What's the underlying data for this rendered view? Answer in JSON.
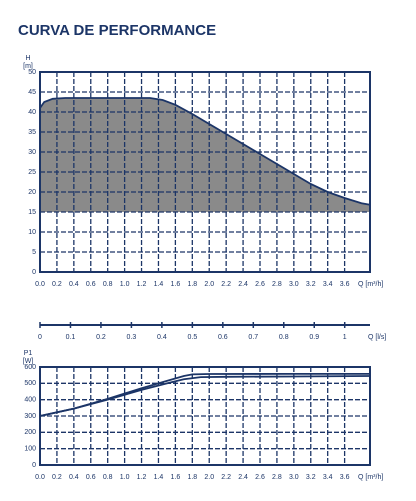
{
  "title": "CURVA DE PERFORMANCE",
  "chart_data": [
    {
      "type": "area",
      "y_label": "H",
      "y_unit": "[m]",
      "x_label": "Q [m³/h]",
      "xlim": [
        0,
        3.9
      ],
      "ylim": [
        0,
        50
      ],
      "area_base": 15,
      "xticks": [
        {
          "value": 0,
          "label": "0.0"
        },
        0.2,
        0.4,
        0.6,
        0.8,
        {
          "value": 1,
          "label": "1.0"
        },
        1.2,
        1.4,
        1.6,
        1.8,
        {
          "value": 2,
          "label": "2.0"
        },
        2.2,
        2.4,
        2.6,
        2.8,
        {
          "value": 3,
          "label": "3.0"
        },
        3.2,
        3.4,
        3.6
      ],
      "yticks": [
        0,
        5,
        10,
        15,
        20,
        25,
        30,
        35,
        40,
        45,
        50
      ],
      "grid": true,
      "color": "#8a8a8a",
      "line_color": "#1c3567",
      "series": [
        {
          "x": [
            0,
            0.05,
            0.15,
            0.3,
            0.6,
            1.0,
            1.3,
            1.45,
            1.6,
            1.8,
            2.0,
            2.2,
            2.4,
            2.6,
            2.8,
            3.0,
            3.2,
            3.4,
            3.6,
            3.8,
            3.9
          ],
          "values": [
            41,
            42.5,
            43.3,
            43.5,
            43.5,
            43.5,
            43.5,
            43,
            41.8,
            39.5,
            37,
            34.5,
            32,
            29.5,
            27,
            24.5,
            22,
            20,
            18.5,
            17.2,
            16.8
          ]
        }
      ]
    },
    {
      "type": "line",
      "y_label": "P1",
      "y_unit": "[W]",
      "x_label": "Q [m³/h]",
      "x2_label": "Q [l/s]",
      "xlim": [
        0,
        3.9
      ],
      "ylim": [
        0,
        600
      ],
      "x2lim": [
        0,
        1.083
      ],
      "xticks": [
        {
          "value": 0,
          "label": "0.0"
        },
        0.2,
        0.4,
        0.6,
        0.8,
        {
          "value": 1,
          "label": "1.0"
        },
        1.2,
        1.4,
        1.6,
        1.8,
        {
          "value": 2,
          "label": "2.0"
        },
        2.2,
        2.4,
        2.6,
        2.8,
        {
          "value": 3,
          "label": "3.0"
        },
        3.2,
        3.4,
        3.6
      ],
      "x2ticks": [
        0,
        0.1,
        0.2,
        0.3,
        0.4,
        0.5,
        0.6,
        0.7,
        0.8,
        0.9,
        1
      ],
      "yticks": [
        0,
        100,
        200,
        300,
        400,
        500,
        600
      ],
      "grid": true,
      "line_color": "#1c3567",
      "series": [
        {
          "x": [
            0,
            0.4,
            0.8,
            1.2,
            1.5,
            1.7,
            1.9,
            2.2,
            3.0,
            3.9
          ],
          "values": [
            300,
            345,
            400,
            460,
            500,
            525,
            538,
            540,
            542,
            545
          ]
        },
        {
          "x": [
            0,
            0.4,
            0.8,
            1.2,
            1.5,
            1.7,
            1.8,
            2.0,
            3.0,
            3.9
          ],
          "values": [
            300,
            345,
            405,
            470,
            515,
            545,
            555,
            557,
            558,
            558
          ]
        }
      ]
    }
  ]
}
